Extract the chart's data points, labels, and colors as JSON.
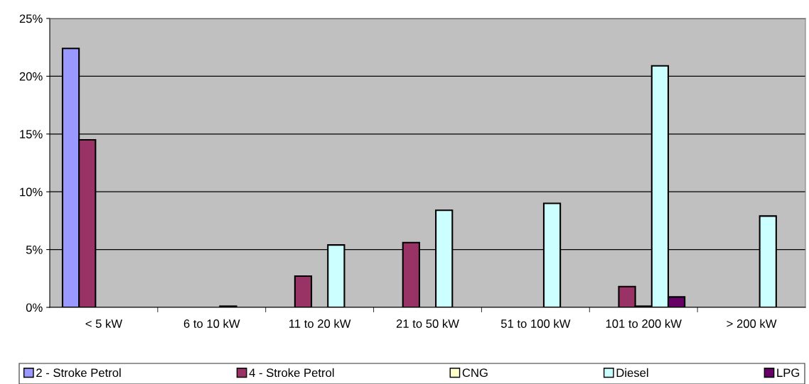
{
  "chart_data": {
    "type": "bar",
    "categories": [
      "< 5 kW",
      "6 to 10 kW",
      "11 to 20 kW",
      "21 to 50 kW",
      "51 to 100 kW",
      "101 to 200 kW",
      "> 200 kW"
    ],
    "series": [
      {
        "name": "2 - Stroke Petrol",
        "color": "#9999ff",
        "values": [
          22.4,
          null,
          null,
          null,
          null,
          null,
          null
        ]
      },
      {
        "name": "4 - Stroke Petrol",
        "color": "#993366",
        "values": [
          14.5,
          null,
          2.7,
          5.6,
          null,
          1.8,
          null
        ]
      },
      {
        "name": "CNG",
        "color": "#ffffcc",
        "values": [
          null,
          null,
          null,
          null,
          null,
          0.1,
          null
        ]
      },
      {
        "name": "Diesel",
        "color": "#ccffff",
        "values": [
          null,
          0.1,
          5.4,
          8.4,
          9.0,
          20.9,
          7.9
        ]
      },
      {
        "name": "LPG",
        "color": "#660066",
        "values": [
          null,
          null,
          null,
          null,
          null,
          0.9,
          null
        ]
      }
    ],
    "ylim": [
      0,
      25
    ],
    "yticks": [
      {
        "value": 0,
        "label": "0%"
      },
      {
        "value": 5,
        "label": "5%"
      },
      {
        "value": 10,
        "label": "10%"
      },
      {
        "value": 15,
        "label": "15%"
      },
      {
        "value": 20,
        "label": "20%"
      },
      {
        "value": 25,
        "label": "25%"
      }
    ],
    "grid": "y",
    "legend": "bottom"
  }
}
